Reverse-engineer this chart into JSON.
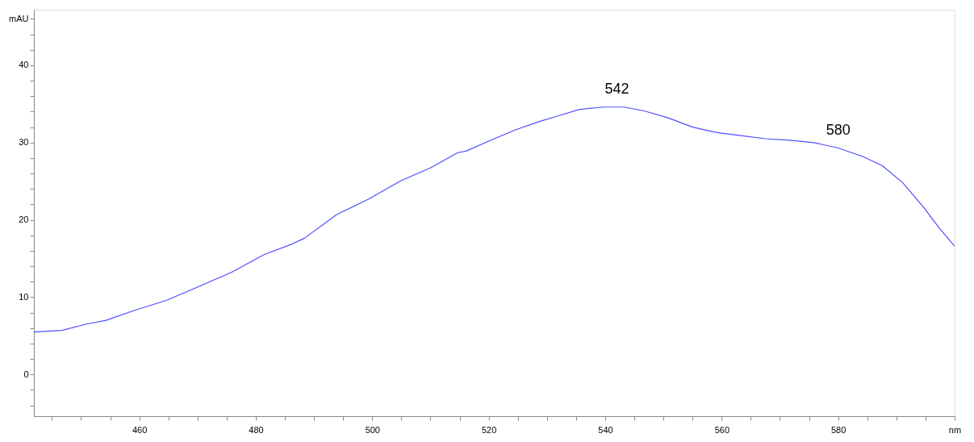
{
  "chart_data": {
    "type": "line",
    "x": [
      441.9,
      446.7,
      450.8,
      454.3,
      459.2,
      464.7,
      470.3,
      475.8,
      481.4,
      486.3,
      488.3,
      493.9,
      499.4,
      505,
      509.9,
      514.7,
      516.1,
      520.3,
      524.4,
      528.6,
      532.1,
      535.6,
      539.7,
      543.2,
      546.7,
      550.8,
      555,
      559.2,
      563.3,
      567.5,
      571.7,
      575.8,
      580,
      584.2,
      587.6,
      591.1,
      594.6,
      597.4,
      600
    ],
    "series": [
      {
        "color": "#4d4dff",
        "values": [
          5.5,
          5.7,
          6.5,
          7.0,
          8.3,
          9.6,
          11.4,
          13.2,
          15.5,
          16.9,
          17.6,
          20.7,
          22.7,
          25.1,
          26.7,
          28.7,
          28.9,
          30.3,
          31.6,
          32.7,
          33.5,
          34.3,
          34.6,
          34.6,
          34.1,
          33.2,
          32.0,
          31.3,
          30.9,
          30.5,
          30.3,
          30.0,
          29.3,
          28.2,
          27.0,
          24.8,
          21.7,
          18.9,
          16.6
        ]
      }
    ],
    "xlim": [
      441.9,
      600
    ],
    "ylim": [
      -5.4,
      47.2
    ],
    "xticks": [
      {
        "value": 445,
        "label": null
      },
      {
        "value": 450,
        "label": null
      },
      {
        "value": 455,
        "label": null
      },
      460,
      {
        "value": 465,
        "label": null
      },
      {
        "value": 470,
        "label": null
      },
      {
        "value": 475,
        "label": null
      },
      480,
      {
        "value": 485,
        "label": null
      },
      {
        "value": 490,
        "label": null
      },
      {
        "value": 495,
        "label": null
      },
      500,
      {
        "value": 505,
        "label": null
      },
      {
        "value": 510,
        "label": null
      },
      {
        "value": 515,
        "label": null
      },
      520,
      {
        "value": 525,
        "label": null
      },
      {
        "value": 530,
        "label": null
      },
      {
        "value": 535,
        "label": null
      },
      540,
      {
        "value": 545,
        "label": null
      },
      {
        "value": 550,
        "label": null
      },
      {
        "value": 555,
        "label": null
      },
      560,
      {
        "value": 565,
        "label": null
      },
      {
        "value": 570,
        "label": null
      },
      {
        "value": 575,
        "label": null
      },
      580,
      {
        "value": 585,
        "label": null
      },
      {
        "value": 590,
        "label": null
      },
      {
        "value": 595,
        "label": null
      },
      {
        "value": 600,
        "label": "nm"
      }
    ],
    "yticks": [
      {
        "value": -4,
        "label": null
      },
      {
        "value": -2,
        "label": null
      },
      0,
      {
        "value": 2,
        "label": null
      },
      {
        "value": 4,
        "label": null
      },
      {
        "value": 6,
        "label": null
      },
      {
        "value": 8,
        "label": null
      },
      10,
      {
        "value": 12,
        "label": null
      },
      {
        "value": 14,
        "label": null
      },
      {
        "value": 16,
        "label": null
      },
      {
        "value": 18,
        "label": null
      },
      20,
      {
        "value": 22,
        "label": null
      },
      {
        "value": 24,
        "label": null
      },
      {
        "value": 26,
        "label": null
      },
      {
        "value": 28,
        "label": null
      },
      30,
      {
        "value": 32,
        "label": null
      },
      {
        "value": 34,
        "label": null
      },
      {
        "value": 36,
        "label": null
      },
      {
        "value": 38,
        "label": null
      },
      40,
      {
        "value": 42,
        "label": null
      },
      {
        "value": 44,
        "label": null
      },
      {
        "value": 46,
        "label": "mAU"
      }
    ],
    "annotations": [
      {
        "text": "542",
        "x": 542,
        "y": 34.6
      },
      {
        "text": "580",
        "x": 580,
        "y": 29.3
      }
    ],
    "grid": false,
    "marker": "none",
    "line_style": "solid"
  }
}
